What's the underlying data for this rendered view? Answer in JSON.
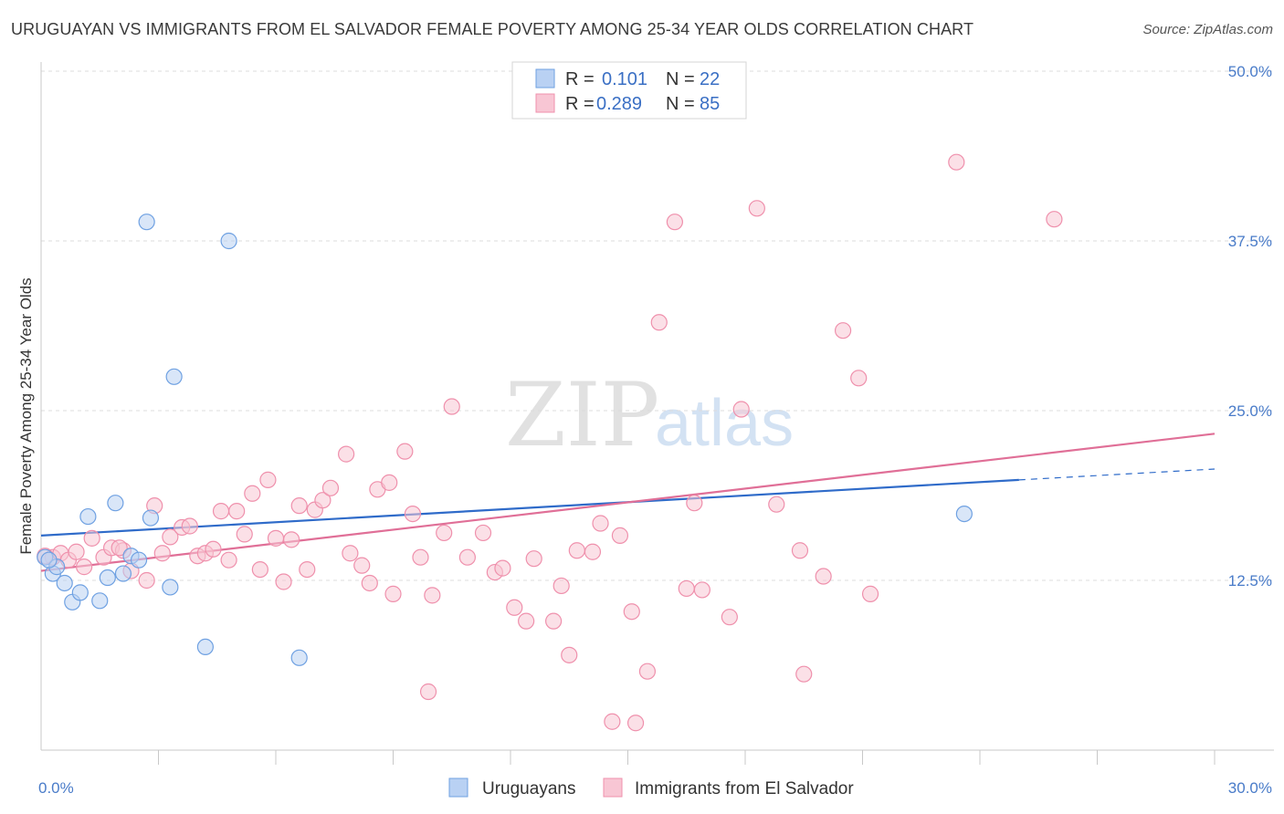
{
  "title": "URUGUAYAN VS IMMIGRANTS FROM EL SALVADOR FEMALE POVERTY AMONG 25-34 YEAR OLDS CORRELATION CHART",
  "source": "Source: ZipAtlas.com",
  "watermark": {
    "zip": "ZIP",
    "atlas": "atlas"
  },
  "legend": {
    "r_label": "R =",
    "n_label": "N =",
    "rows": [
      {
        "series": "Uruguayans",
        "r": "0.101",
        "n": "22"
      },
      {
        "series": "Immigrants from El Salvador",
        "r": "0.289",
        "n": "85"
      }
    ]
  },
  "chart_data": {
    "type": "scatter",
    "title": "URUGUAYAN VS IMMIGRANTS FROM EL SALVADOR FEMALE POVERTY AMONG 25-34 YEAR OLDS CORRELATION CHART",
    "xlabel": "",
    "ylabel": "Female Poverty Among 25-34 Year Olds",
    "xlim": [
      0,
      30
    ],
    "ylim": [
      0,
      50
    ],
    "x_ticks_labeled": [
      "0.0%",
      "30.0%"
    ],
    "y_ticks": [
      {
        "value": 12.5,
        "label": "12.5%"
      },
      {
        "value": 25.0,
        "label": "25.0%"
      },
      {
        "value": 37.5,
        "label": "37.5%"
      },
      {
        "value": 50.0,
        "label": "50.0%"
      }
    ],
    "x_minor_ticks": [
      3,
      6,
      9,
      12,
      15,
      18,
      21,
      24,
      27
    ],
    "grid": "horizontal dashed",
    "legend_placement": "top-center",
    "series": [
      {
        "name": "Uruguayans",
        "color": "#6fa1e2",
        "fill": "#b9d1f3",
        "trend_color": "#2f6bc9",
        "trend": {
          "x": [
            0,
            25
          ],
          "y": [
            15.8,
            19.9
          ],
          "dashed_extension": {
            "x": [
              25,
              30
            ],
            "y": [
              19.9,
              20.7
            ]
          }
        },
        "points": [
          [
            0.1,
            14.2
          ],
          [
            0.3,
            13.0
          ],
          [
            0.4,
            13.5
          ],
          [
            0.6,
            12.3
          ],
          [
            0.8,
            10.9
          ],
          [
            1.0,
            11.6
          ],
          [
            1.2,
            17.2
          ],
          [
            1.5,
            11.0
          ],
          [
            1.7,
            12.7
          ],
          [
            1.9,
            18.2
          ],
          [
            2.1,
            13.0
          ],
          [
            2.3,
            14.3
          ],
          [
            2.5,
            14.0
          ],
          [
            2.7,
            38.9
          ],
          [
            2.8,
            17.1
          ],
          [
            3.3,
            12.0
          ],
          [
            3.4,
            27.5
          ],
          [
            4.2,
            7.6
          ],
          [
            4.8,
            37.5
          ],
          [
            6.6,
            6.8
          ],
          [
            23.6,
            17.4
          ],
          [
            0.2,
            14.0
          ]
        ]
      },
      {
        "name": "Immigrants from El Salvador",
        "color": "#ef90ac",
        "fill": "#f8c6d4",
        "trend_color": "#e06f97",
        "trend": {
          "x": [
            0,
            30
          ],
          "y": [
            13.2,
            23.3
          ]
        },
        "points": [
          [
            0.3,
            14.2
          ],
          [
            0.5,
            14.5
          ],
          [
            0.7,
            14.0
          ],
          [
            0.9,
            14.6
          ],
          [
            1.1,
            13.5
          ],
          [
            1.3,
            15.6
          ],
          [
            1.6,
            14.2
          ],
          [
            1.8,
            14.9
          ],
          [
            2.1,
            14.7
          ],
          [
            2.3,
            13.2
          ],
          [
            2.7,
            12.5
          ],
          [
            2.9,
            18.0
          ],
          [
            3.1,
            14.5
          ],
          [
            3.3,
            15.7
          ],
          [
            3.6,
            16.4
          ],
          [
            3.8,
            16.5
          ],
          [
            4.0,
            14.3
          ],
          [
            4.2,
            14.5
          ],
          [
            4.4,
            14.8
          ],
          [
            4.6,
            17.6
          ],
          [
            4.8,
            14.0
          ],
          [
            5.0,
            17.6
          ],
          [
            5.2,
            15.9
          ],
          [
            5.4,
            18.9
          ],
          [
            5.6,
            13.3
          ],
          [
            5.8,
            19.9
          ],
          [
            6.0,
            15.6
          ],
          [
            6.2,
            12.4
          ],
          [
            6.4,
            15.5
          ],
          [
            6.6,
            18.0
          ],
          [
            6.8,
            13.3
          ],
          [
            7.0,
            17.7
          ],
          [
            7.2,
            18.4
          ],
          [
            7.4,
            19.3
          ],
          [
            7.8,
            21.8
          ],
          [
            7.9,
            14.5
          ],
          [
            8.2,
            13.6
          ],
          [
            8.4,
            12.3
          ],
          [
            8.6,
            19.2
          ],
          [
            8.9,
            19.7
          ],
          [
            9.0,
            11.5
          ],
          [
            9.3,
            22.0
          ],
          [
            9.5,
            17.4
          ],
          [
            9.7,
            14.2
          ],
          [
            10.0,
            11.4
          ],
          [
            10.3,
            16.0
          ],
          [
            10.5,
            25.3
          ],
          [
            10.9,
            14.2
          ],
          [
            11.3,
            16.0
          ],
          [
            11.6,
            13.1
          ],
          [
            11.8,
            13.4
          ],
          [
            12.1,
            10.5
          ],
          [
            12.4,
            9.5
          ],
          [
            12.6,
            14.1
          ],
          [
            13.1,
            9.5
          ],
          [
            13.3,
            12.1
          ],
          [
            13.5,
            7.0
          ],
          [
            13.7,
            14.7
          ],
          [
            14.1,
            14.6
          ],
          [
            14.3,
            16.7
          ],
          [
            14.6,
            2.1
          ],
          [
            14.8,
            15.8
          ],
          [
            15.1,
            10.2
          ],
          [
            15.2,
            2.0
          ],
          [
            15.5,
            5.8
          ],
          [
            15.8,
            31.5
          ],
          [
            16.2,
            38.9
          ],
          [
            16.5,
            11.9
          ],
          [
            16.7,
            18.2
          ],
          [
            16.9,
            11.8
          ],
          [
            17.6,
            9.8
          ],
          [
            17.9,
            25.1
          ],
          [
            18.3,
            39.9
          ],
          [
            18.8,
            18.1
          ],
          [
            19.4,
            14.7
          ],
          [
            20.0,
            12.8
          ],
          [
            20.5,
            30.9
          ],
          [
            20.9,
            27.4
          ],
          [
            21.2,
            11.5
          ],
          [
            23.4,
            43.3
          ],
          [
            25.9,
            39.1
          ],
          [
            9.9,
            4.3
          ],
          [
            19.5,
            5.6
          ],
          [
            2.0,
            14.9
          ],
          [
            0.1,
            14.3
          ]
        ]
      }
    ]
  }
}
